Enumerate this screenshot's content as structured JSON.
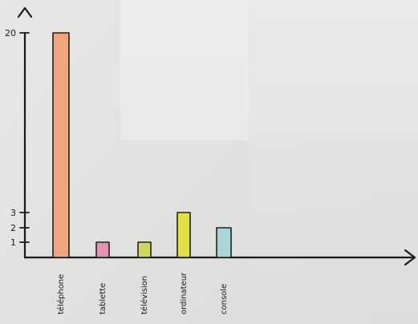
{
  "chart_data": {
    "type": "bar",
    "title": "",
    "xlabel": "",
    "ylabel": "",
    "categories": [
      "téléphone",
      "tablette",
      "télévision",
      "ordinateur",
      "console"
    ],
    "values": [
      20,
      1,
      1,
      3,
      2
    ],
    "ylim": [
      0,
      20
    ],
    "ytick_labels": [
      "1",
      "2",
      "3",
      "20"
    ],
    "ytick_values": [
      1,
      2,
      3,
      20
    ],
    "grid": false,
    "colors": [
      "#f2a57a",
      "#e98fb2",
      "#cfd75b",
      "#e2df44",
      "#a8d6d6"
    ]
  }
}
